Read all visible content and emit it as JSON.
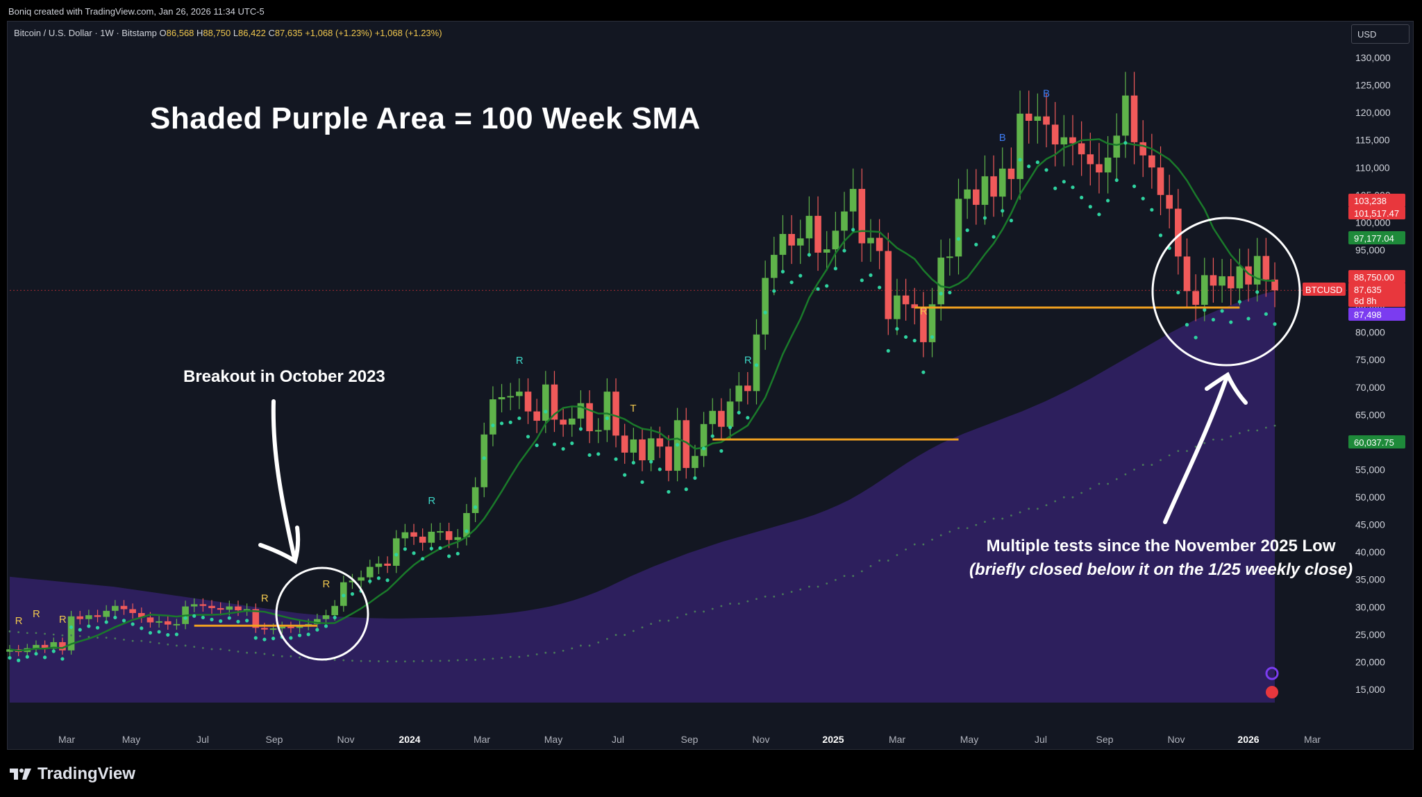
{
  "header": {
    "credit": "Boniq created with TradingView.com, Jan 26, 2026 11:34 UTC-5"
  },
  "legend": {
    "symbol": "Bitcoin / U.S. Dollar · 1W · Bitstamp",
    "o_label": "O",
    "o_value": "86,568",
    "h_label": "H",
    "h_value": "88,750",
    "l_label": "L",
    "l_value": "86,422",
    "c_label": "C",
    "c_value": "87,635",
    "change": "+1,068 (+1.23%)",
    "change2": "+1,068 (+1.23%)"
  },
  "currency_button": "USD",
  "annotations": {
    "headline": "Shaded Purple Area = 100 Week SMA",
    "breakout": "Breakout in October 2023",
    "tests_line1": "Multiple tests since the November 2025 Low",
    "tests_line2": "(briefly closed below it on the 1/25 weekly close)"
  },
  "footer": {
    "brand": "TradingView"
  },
  "colors": {
    "up": "#5fb34a",
    "down": "#f05a5a",
    "sma_fill": "#2e2061",
    "sma_line": "#1a7a2a",
    "orange": "#f0a020",
    "purple_label": "#7b3cf0",
    "green_label": "#1e8a3a",
    "red_label": "#e8373d"
  },
  "chart_data": {
    "type": "candlestick",
    "symbol": "BTCUSD",
    "interval": "1W",
    "x_ticks": [
      "Mar",
      "May",
      "Jul",
      "Sep",
      "Nov",
      "2024",
      "Mar",
      "May",
      "Jul",
      "Sep",
      "Nov",
      "2025",
      "Mar",
      "May",
      "Jul",
      "Sep",
      "Nov",
      "2026",
      "Mar"
    ],
    "y_ticks": [
      "130,000",
      "125,000",
      "120,000",
      "115,000",
      "110,000",
      "105,000",
      "100,000",
      "95,000",
      "90,000",
      "85,000",
      "80,000",
      "75,000",
      "70,000",
      "65,000",
      "60,000",
      "55,000",
      "50,000",
      "45,000",
      "40,000",
      "35,000",
      "30,000",
      "25,000",
      "20,000",
      "15,000"
    ],
    "ylim": [
      12000,
      135000
    ],
    "price_labels": [
      {
        "label": "",
        "value": "103,238",
        "color": "#e8373d"
      },
      {
        "label": "",
        "value": "101,517.47",
        "color": "#e8373d"
      },
      {
        "label": "",
        "value": "97,177.04",
        "color": "#1e8a3a"
      },
      {
        "label": "",
        "value": "88,750.00",
        "color": "#e8373d"
      },
      {
        "label": "BTCUSD",
        "value": "87,635",
        "color": "#e8373d"
      },
      {
        "label": "",
        "value": "6d 8h",
        "color": "#e8373d"
      },
      {
        "label": "",
        "value": "87,498",
        "color": "#7b3cf0"
      },
      {
        "label": "",
        "value": "60,037.75",
        "color": "#1e8a3a"
      }
    ],
    "signal_markers": [
      {
        "text": "R",
        "date_index": 1,
        "color": "#f0c74e"
      },
      {
        "text": "R",
        "date_index": 3,
        "color": "#f0c74e"
      },
      {
        "text": "R",
        "date_index": 6,
        "color": "#f0c74e"
      },
      {
        "text": "R",
        "date_index": 29,
        "color": "#f0c74e"
      },
      {
        "text": "R",
        "date_index": 36,
        "color": "#f0c74e"
      },
      {
        "text": "R",
        "date_index": 48,
        "color": "#3dd6c6"
      },
      {
        "text": "R",
        "date_index": 58,
        "color": "#3dd6c6"
      },
      {
        "text": "T",
        "date_index": 71,
        "color": "#f0c74e"
      },
      {
        "text": "R",
        "date_index": 84,
        "color": "#3dd6c6"
      },
      {
        "text": "R",
        "date_index": 104,
        "color": "#f0c74e"
      },
      {
        "text": "B",
        "date_index": 113,
        "color": "#3d7bf0"
      },
      {
        "text": "B",
        "date_index": 118,
        "color": "#3d7bf0"
      }
    ],
    "weekly_close": [
      22300,
      21800,
      22500,
      23100,
      22400,
      23600,
      22100,
      28300,
      27800,
      28500,
      28200,
      29300,
      30200,
      29600,
      28900,
      28100,
      27200,
      27400,
      26800,
      26900,
      30100,
      30500,
      30200,
      29800,
      29500,
      30100,
      29400,
      29600,
      26200,
      25900,
      26100,
      26400,
      26200,
      26700,
      26900,
      27800,
      28500,
      30200,
      34500,
      34800,
      35400,
      37300,
      37900,
      37500,
      42500,
      43600,
      42800,
      41700,
      43700,
      43800,
      42200,
      42700,
      47100,
      51800,
      61400,
      67800,
      68200,
      68400,
      69200,
      65600,
      63900,
      70500,
      64100,
      63200,
      64300,
      67100,
      62000,
      62200,
      69200,
      61200,
      58100,
      60500,
      56700,
      60700,
      59200,
      54800,
      64000,
      55300,
      57500,
      63300,
      65700,
      62800,
      67400,
      70300,
      69300,
      79600,
      89900,
      94100,
      97900,
      95800,
      97100,
      101200,
      94500,
      95100,
      98500,
      102000,
      106100,
      96200,
      97200,
      94800,
      82400,
      86700,
      85100,
      84400,
      78200,
      85100,
      93600,
      93800,
      104300,
      106000,
      103200,
      108400,
      104700,
      109800,
      107900,
      119800,
      118500,
      119300,
      117800,
      114200,
      115500,
      114400,
      112400,
      110600,
      109100,
      111800,
      115800,
      123100,
      114600,
      112200,
      110000,
      105000,
      102500,
      93800,
      87500,
      85000,
      90400,
      88500,
      90200,
      88000,
      92000,
      88700,
      93900,
      89600,
      87635
    ],
    "sma_100w": [
      35500,
      35300,
      35100,
      34900,
      34700,
      34500,
      34300,
      34100,
      33900,
      33700,
      33400,
      33100,
      32800,
      32500,
      32200,
      31900,
      31600,
      31300,
      31000,
      30700,
      30400,
      30100,
      29800,
      29500,
      29200,
      28900,
      28700,
      28500,
      28300,
      28200,
      28100,
      28000,
      27950,
      27900,
      27900,
      27950,
      28000,
      28050,
      28100,
      28200,
      28300,
      28450,
      28600,
      28800,
      29050,
      29350,
      29700,
      30100,
      30600,
      31200,
      31900,
      32700,
      33600,
      34600,
      35600,
      36500,
      37400,
      38200,
      39000,
      39800,
      40500,
      41200,
      41900,
      42500,
      43100,
      43700,
      44300,
      44900,
      45500,
      46100,
      46800,
      47600,
      48500,
      49500,
      50700,
      52000,
      53400,
      54800,
      56200,
      57500,
      58700,
      59800,
      60700,
      61600,
      62400,
      63200,
      64000,
      64800,
      65600,
      66500,
      67400,
      68400,
      69400,
      70500,
      71600,
      72800,
      74000,
      75200,
      76400,
      77600,
      78800,
      80000,
      81100,
      82200,
      83100,
      84000,
      84800,
      85600,
      86300,
      87000,
      87500
    ]
  }
}
